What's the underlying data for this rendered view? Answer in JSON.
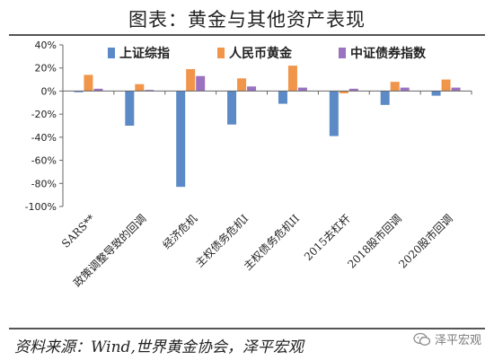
{
  "title": "图表：黄金与其他资产表现",
  "source": "资料来源：Wind,世界黄金协会，泽平宏观",
  "watermark": "泽平宏观",
  "chart_data": {
    "type": "bar",
    "categories": [
      "SARS**",
      "政策调整导致的回调",
      "经济危机",
      "主权债务危机I",
      "主权债务危机II",
      "2015去杠杆",
      "2018股市回调",
      "2020股市回调"
    ],
    "series": [
      {
        "name": "上证综指",
        "color": "#5b8ac6",
        "values": [
          -1,
          -30,
          -83,
          -29,
          -11,
          -39,
          -12,
          -4
        ]
      },
      {
        "name": "人民币黄金",
        "color": "#f0954a",
        "values": [
          14,
          6,
          19,
          11,
          22,
          -2,
          8,
          10
        ]
      },
      {
        "name": "中证债券指数",
        "color": "#9b72c0",
        "values": [
          2,
          1,
          13,
          4,
          3,
          2,
          3,
          3
        ]
      }
    ],
    "yticks": [
      "40%",
      "20%",
      "0%",
      "-20%",
      "-40%",
      "-60%",
      "-80%",
      "-100%"
    ],
    "ylim": [
      -100,
      40
    ],
    "legend": "top",
    "grid": false
  }
}
